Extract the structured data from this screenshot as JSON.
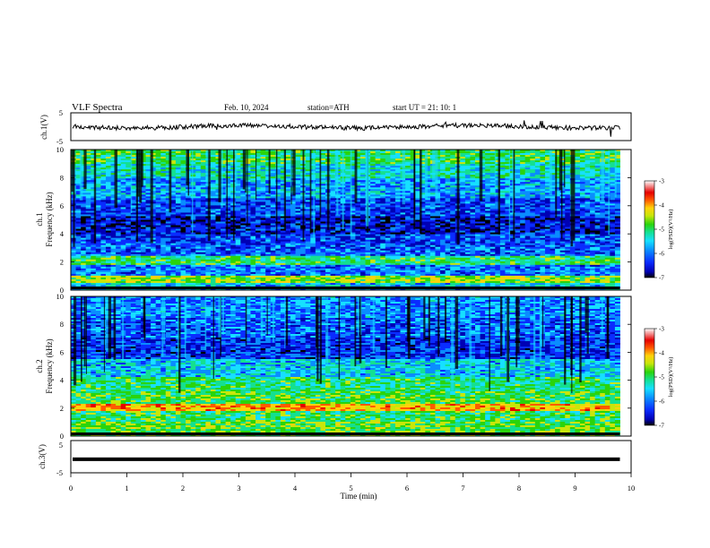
{
  "header": {
    "title": "VLF  Spectra",
    "date": "Feb. 10, 2024",
    "station": "station=ATH",
    "start": "start  UT  =    21: 10: 1"
  },
  "chart_data": [
    {
      "type": "line",
      "panel": "ch1-waveform",
      "ylabel": "ch.1(V)",
      "ytick_labels": [
        "5",
        "-5"
      ],
      "ylim": [
        -5,
        5
      ],
      "xlim": [
        0,
        10
      ],
      "data_end_min": 9.8,
      "baseline_v": 0,
      "line_color": "#000000"
    },
    {
      "type": "heatmap",
      "panel": "ch1-spectrogram",
      "ylabel": [
        "ch.1",
        "Frequency  (kHz)"
      ],
      "ytick_labels": [
        "0",
        "2",
        "4",
        "6",
        "8",
        "10"
      ],
      "ylim": [
        0,
        10
      ],
      "xlim": [
        0,
        10
      ],
      "data_end_min": 9.8,
      "band_khz": [
        {
          "f": [
            0.0,
            0.5
          ],
          "v": -5.6
        },
        {
          "f": [
            0.5,
            1.0
          ],
          "v": -4.6
        },
        {
          "f": [
            1.0,
            1.8
          ],
          "v": -6.0
        },
        {
          "f": [
            1.8,
            2.5
          ],
          "v": -5.0
        },
        {
          "f": [
            2.5,
            3.2
          ],
          "v": -6.1
        },
        {
          "f": [
            3.2,
            4.0
          ],
          "v": -6.2
        },
        {
          "f": [
            4.0,
            5.2
          ],
          "v": -6.5
        },
        {
          "f": [
            5.2,
            6.5
          ],
          "v": -6.2
        },
        {
          "f": [
            6.5,
            8.0
          ],
          "v": -5.8
        },
        {
          "f": [
            8.0,
            9.0
          ],
          "v": -5.4
        },
        {
          "f": [
            9.0,
            10.0
          ],
          "v": -5.0
        }
      ],
      "colorbar": {
        "label": "log(PSD)(V²/Hz)",
        "ticks": [
          "-3",
          "-4",
          "-5",
          "-6",
          "-7"
        ],
        "range": [
          -7,
          -3
        ]
      }
    },
    {
      "type": "heatmap",
      "panel": "ch2-spectrogram",
      "ylabel": [
        "ch.2",
        "Frequency  (kHz)"
      ],
      "ytick_labels": [
        "0",
        "2",
        "4",
        "6",
        "8",
        "10"
      ],
      "ylim": [
        0,
        10
      ],
      "xlim": [
        0,
        10
      ],
      "data_end_min": 9.8,
      "band_khz": [
        {
          "f": [
            0.0,
            1.0
          ],
          "v": -4.8
        },
        {
          "f": [
            1.0,
            1.8
          ],
          "v": -5.0
        },
        {
          "f": [
            1.8,
            2.3
          ],
          "v": -4.0
        },
        {
          "f": [
            2.3,
            3.2
          ],
          "v": -4.9
        },
        {
          "f": [
            3.2,
            4.2
          ],
          "v": -5.1
        },
        {
          "f": [
            4.2,
            5.5
          ],
          "v": -5.6
        },
        {
          "f": [
            5.5,
            7.0
          ],
          "v": -6.3
        },
        {
          "f": [
            7.0,
            8.5
          ],
          "v": -6.1
        },
        {
          "f": [
            8.5,
            10.0
          ],
          "v": -5.9
        }
      ],
      "colorbar": {
        "label": "log(PSD)(V²/Hz)",
        "ticks": [
          "-3",
          "-4",
          "-5",
          "-6",
          "-7"
        ],
        "range": [
          -7,
          -3
        ]
      }
    },
    {
      "type": "line",
      "panel": "ch3-waveform",
      "ylabel": "ch.3(V)",
      "ytick_labels": [
        "5",
        "-5"
      ],
      "ylim": [
        -5,
        5
      ],
      "xlim": [
        0,
        10
      ],
      "data_end_min": 9.8,
      "baseline_v": -0.8,
      "line_color": "#000000",
      "xlabel": "Time  (min)",
      "xtick_labels": [
        "0",
        "1",
        "2",
        "3",
        "4",
        "5",
        "6",
        "7",
        "8",
        "9",
        "10"
      ]
    }
  ],
  "colors": {
    "colormap": [
      "#000000",
      "#0000b4",
      "#0a2cff",
      "#0a8cff",
      "#16e0ff",
      "#14e090",
      "#2ad40c",
      "#c8e60a",
      "#ffd20a",
      "#ff5a00",
      "#e60000",
      "#ffffff"
    ]
  }
}
